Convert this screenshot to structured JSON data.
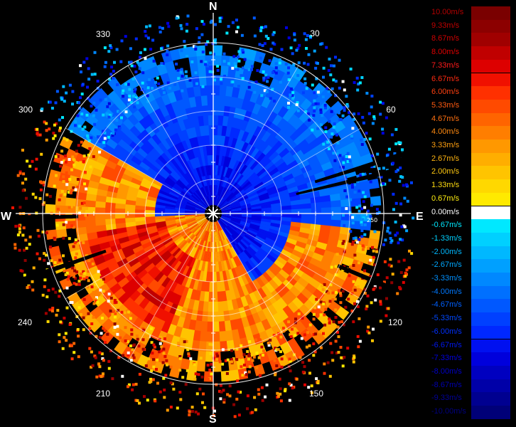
{
  "radar": {
    "cardinals": {
      "north": "N",
      "south": "S",
      "east": "E",
      "west": "W"
    },
    "azimuth_labels": [
      "30",
      "60",
      "120",
      "150",
      "210",
      "240",
      "300",
      "330"
    ],
    "range_label": "250"
  },
  "colorbar": {
    "entries": [
      {
        "label": "10.00m/s",
        "color": "#7a0000",
        "text_color": "#b00000"
      },
      {
        "label": "9.33m/s",
        "color": "#8c0000",
        "text_color": "#c00000"
      },
      {
        "label": "8.67m/s",
        "color": "#a00000",
        "text_color": "#d00000"
      },
      {
        "label": "8.00m/s",
        "color": "#c00000",
        "text_color": "#e00000"
      },
      {
        "label": "7.33m/s",
        "color": "#dd0000",
        "text_color": "#ff1a1a"
      },
      {
        "label": "6.67m/s",
        "color": "#f01000",
        "text_color": "#ff2a10"
      },
      {
        "label": "6.00m/s",
        "color": "#ff3000",
        "text_color": "#ff4010"
      },
      {
        "label": "5.33m/s",
        "color": "#ff4a00",
        "text_color": "#ff5a10"
      },
      {
        "label": "4.67m/s",
        "color": "#ff6400",
        "text_color": "#ff7010"
      },
      {
        "label": "4.00m/s",
        "color": "#ff7e00",
        "text_color": "#ff8a10"
      },
      {
        "label": "3.33m/s",
        "color": "#ff9800",
        "text_color": "#ffa010"
      },
      {
        "label": "2.67m/s",
        "color": "#ffae00",
        "text_color": "#ffb410"
      },
      {
        "label": "2.00m/s",
        "color": "#ffc400",
        "text_color": "#ffc810"
      },
      {
        "label": "1.33m/s",
        "color": "#ffd800",
        "text_color": "#ffdc10"
      },
      {
        "label": "0.67m/s",
        "color": "#ffea00",
        "text_color": "#ffee10"
      },
      {
        "label": "0.00m/s",
        "color": "#ffffff",
        "text_color": "#ffffff"
      },
      {
        "label": "-0.67m/s",
        "color": "#00e8ff",
        "text_color": "#00e8ff"
      },
      {
        "label": "-1.33m/s",
        "color": "#00d0ff",
        "text_color": "#00d0ff"
      },
      {
        "label": "-2.00m/s",
        "color": "#00b8ff",
        "text_color": "#00b8ff"
      },
      {
        "label": "-2.67m/s",
        "color": "#00a0ff",
        "text_color": "#00a8ff"
      },
      {
        "label": "-3.33m/s",
        "color": "#0088ff",
        "text_color": "#0090ff"
      },
      {
        "label": "-4.00m/s",
        "color": "#0070ff",
        "text_color": "#0078ff"
      },
      {
        "label": "-4.67m/s",
        "color": "#0058ff",
        "text_color": "#0060ff"
      },
      {
        "label": "-5.33m/s",
        "color": "#0040ff",
        "text_color": "#0048ff"
      },
      {
        "label": "-6.00m/s",
        "color": "#0028ff",
        "text_color": "#0030ff"
      },
      {
        "label": "-6.67m/s",
        "color": "#0010f0",
        "text_color": "#0018f0"
      },
      {
        "label": "-7.33m/s",
        "color": "#0000dc",
        "text_color": "#0000e0"
      },
      {
        "label": "-8.00m/s",
        "color": "#0000c0",
        "text_color": "#0000c8"
      },
      {
        "label": "-8.67m/s",
        "color": "#0000a8",
        "text_color": "#0000b0"
      },
      {
        "label": "-9.33m/s",
        "color": "#000090",
        "text_color": "#000098"
      },
      {
        "label": "-10.00m/s",
        "color": "#000078",
        "text_color": "#000080"
      }
    ]
  }
}
